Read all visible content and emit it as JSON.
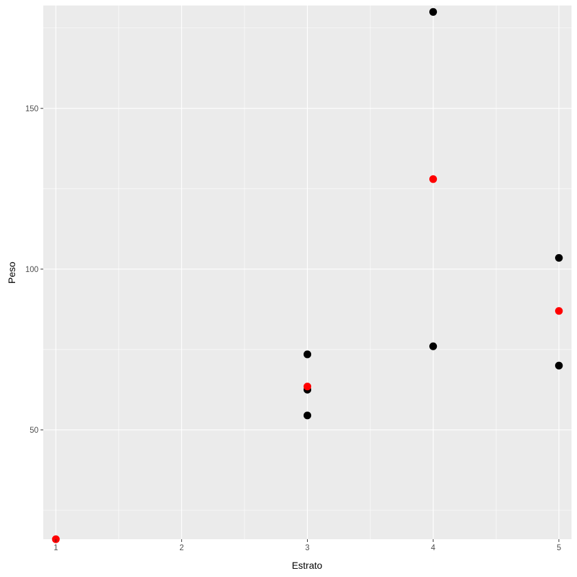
{
  "chart_data": {
    "type": "scatter",
    "xlabel": "Estrato",
    "ylabel": "Peso",
    "xlim": [
      0.9,
      5.1
    ],
    "ylim": [
      16,
      182
    ],
    "x_ticks": [
      1,
      2,
      3,
      4,
      5
    ],
    "y_ticks": [
      50,
      100,
      150
    ],
    "grid": true,
    "background_color": "#EBEBEB",
    "grid_color": "#FFFFFF",
    "series": [
      {
        "color": "#000000",
        "points": [
          {
            "x": 3,
            "y": 54.5
          },
          {
            "x": 3,
            "y": 62.5
          },
          {
            "x": 3,
            "y": 73.5
          },
          {
            "x": 4,
            "y": 76
          },
          {
            "x": 4,
            "y": 180
          },
          {
            "x": 5,
            "y": 70
          },
          {
            "x": 5,
            "y": 103.5
          }
        ]
      },
      {
        "color": "#FF0000",
        "points": [
          {
            "x": 1,
            "y": 16
          },
          {
            "x": 3,
            "y": 63.5
          },
          {
            "x": 4,
            "y": 128
          },
          {
            "x": 5,
            "y": 87
          }
        ]
      }
    ]
  }
}
